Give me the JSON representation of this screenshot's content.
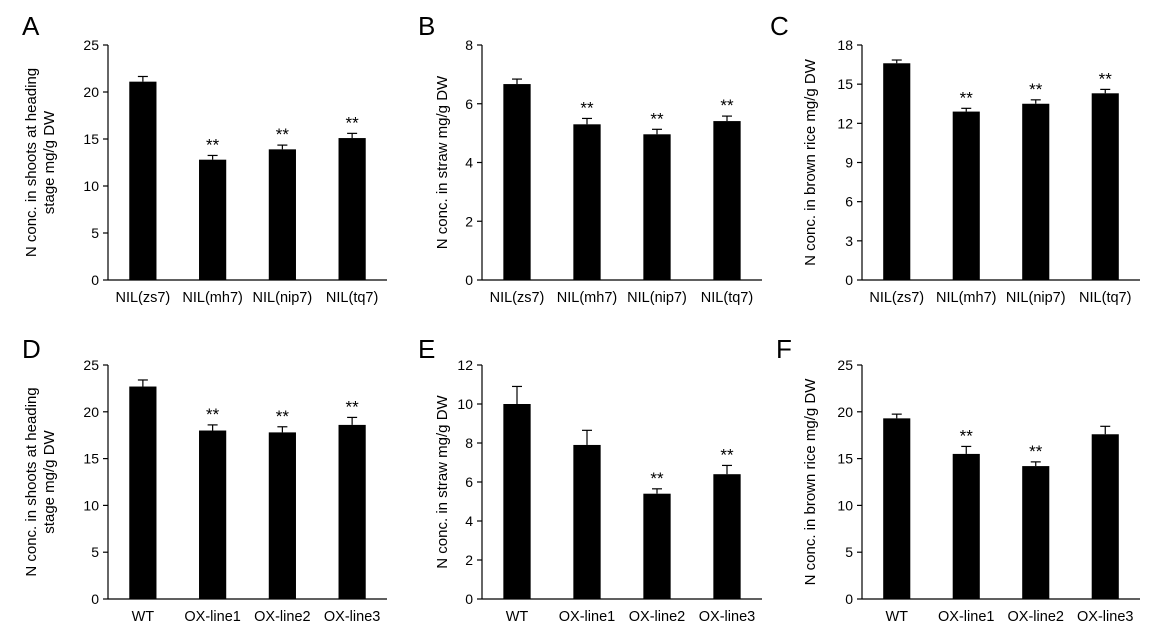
{
  "chart_data": [
    {
      "type": "bar",
      "panel": "A",
      "categories": [
        "NIL(zs7)",
        "NIL(mh7)",
        "NIL(nip7)",
        "NIL(tq7)"
      ],
      "values": [
        21.1,
        12.8,
        13.9,
        15.1
      ],
      "errors": [
        0.55,
        0.45,
        0.45,
        0.5
      ],
      "annotations": [
        "",
        "**",
        "**",
        "**"
      ],
      "ylabel": [
        "N conc. in shoots at heading",
        "stage mg/g DW"
      ],
      "ylim": [
        0,
        25
      ],
      "yticks": [
        0,
        5,
        10,
        15,
        20,
        25
      ],
      "bar_color": "#000000",
      "grid": false
    },
    {
      "type": "bar",
      "panel": "B",
      "categories": [
        "NIL(zs7)",
        "NIL(mh7)",
        "NIL(nip7)",
        "NIL(tq7)"
      ],
      "values": [
        6.67,
        5.3,
        4.96,
        5.41
      ],
      "errors": [
        0.17,
        0.2,
        0.17,
        0.17
      ],
      "annotations": [
        "",
        "**",
        "**",
        "**"
      ],
      "ylabel": [
        "N conc. in straw mg/g DW"
      ],
      "ylim": [
        0,
        8
      ],
      "yticks": [
        0,
        2,
        4,
        6,
        8
      ],
      "bar_color": "#000000",
      "grid": false
    },
    {
      "type": "bar",
      "panel": "C",
      "categories": [
        "NIL(zs7)",
        "NIL(mh7)",
        "NIL(nip7)",
        "NIL(tq7)"
      ],
      "values": [
        16.6,
        12.9,
        13.5,
        14.3
      ],
      "errors": [
        0.25,
        0.25,
        0.3,
        0.3
      ],
      "annotations": [
        "",
        "**",
        "**",
        "**"
      ],
      "ylabel": [
        "N conc. in brown rice mg/g DW"
      ],
      "ylim": [
        0,
        18
      ],
      "yticks": [
        0,
        3,
        6,
        9,
        12,
        15,
        18
      ],
      "bar_color": "#000000",
      "grid": false
    },
    {
      "type": "bar",
      "panel": "D",
      "categories": [
        "WT",
        "OX-line1",
        "OX-line2",
        "OX-line3"
      ],
      "values": [
        22.7,
        18.0,
        17.8,
        18.6
      ],
      "errors": [
        0.7,
        0.6,
        0.6,
        0.8
      ],
      "annotations": [
        "",
        "**",
        "**",
        "**"
      ],
      "ylabel": [
        "N conc. in shoots at heading",
        "stage mg/g DW"
      ],
      "ylim": [
        0,
        25
      ],
      "yticks": [
        0,
        5,
        10,
        15,
        20,
        25
      ],
      "bar_color": "#000000",
      "grid": false
    },
    {
      "type": "bar",
      "panel": "E",
      "categories": [
        "WT",
        "OX-line1",
        "OX-line2",
        "OX-line3"
      ],
      "values": [
        10.0,
        7.9,
        5.4,
        6.4
      ],
      "errors": [
        0.9,
        0.75,
        0.25,
        0.45
      ],
      "annotations": [
        "",
        "",
        "**",
        "**"
      ],
      "ylabel": [
        "N conc. in straw mg/g DW"
      ],
      "ylim": [
        0,
        12
      ],
      "yticks": [
        0,
        2,
        4,
        6,
        8,
        10,
        12
      ],
      "bar_color": "#000000",
      "grid": false
    },
    {
      "type": "bar",
      "panel": "F",
      "categories": [
        "WT",
        "OX-line1",
        "OX-line2",
        "OX-line3"
      ],
      "values": [
        19.3,
        15.5,
        14.2,
        17.6
      ],
      "errors": [
        0.45,
        0.8,
        0.45,
        0.85
      ],
      "annotations": [
        "",
        "**",
        "**",
        ""
      ],
      "ylabel": [
        "N conc. in brown rice mg/g DW"
      ],
      "ylim": [
        0,
        25
      ],
      "yticks": [
        0,
        5,
        10,
        15,
        20,
        25
      ],
      "bar_color": "#000000",
      "grid": false
    }
  ]
}
